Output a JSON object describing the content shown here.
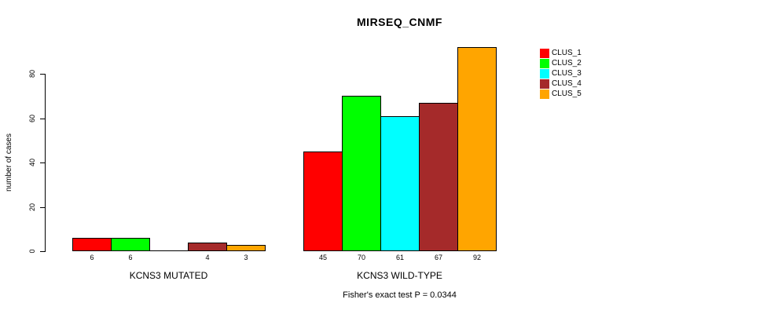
{
  "chart_data": {
    "type": "bar",
    "title": "MIRSEQ_CNMF",
    "ylabel": "number of cases",
    "xlabel": "",
    "ylim": [
      0,
      92
    ],
    "yticks": [
      0,
      20,
      40,
      60,
      80
    ],
    "grid": false,
    "legend_position": "right",
    "categories": [
      "KCNS3 MUTATED",
      "KCNS3 WILD-TYPE"
    ],
    "series": [
      {
        "name": "CLUS_1",
        "color": "#ff0000",
        "values": [
          6,
          45
        ]
      },
      {
        "name": "CLUS_2",
        "color": "#00ff00",
        "values": [
          6,
          70
        ]
      },
      {
        "name": "CLUS_3",
        "color": "#00ffff",
        "values": [
          0,
          61
        ]
      },
      {
        "name": "CLUS_4",
        "color": "#a52a2a",
        "values": [
          4,
          67
        ]
      },
      {
        "name": "CLUS_5",
        "color": "#ffa500",
        "values": [
          3,
          92
        ]
      }
    ],
    "bar_border_color": "#000000",
    "value_labels": {
      "KCNS3 MUTATED": [
        "6",
        "6",
        "",
        "4",
        "3"
      ],
      "KCNS3 WILD-TYPE": [
        "45",
        "70",
        "61",
        "67",
        "92"
      ]
    },
    "annotation": "Fisher's exact test P = 0.0344"
  }
}
